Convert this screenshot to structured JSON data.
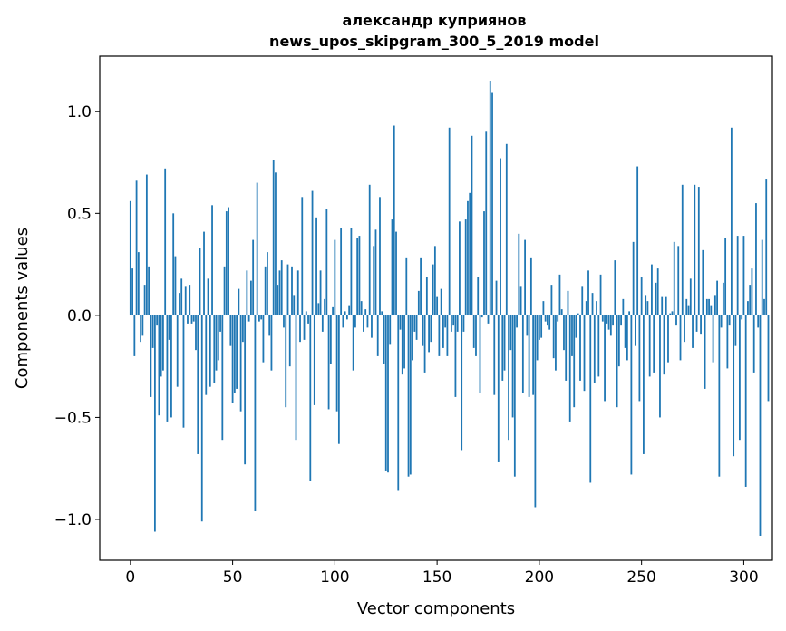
{
  "chart_data": {
    "type": "bar",
    "title_line1": "александр куприянов",
    "title_line2": "news_upos_skipgram_300_5_2019 model",
    "xlabel": "Vector components",
    "ylabel": "Components values",
    "xlim": [
      -15,
      314
    ],
    "ylim": [
      -1.2,
      1.27
    ],
    "xticks": [
      0,
      50,
      100,
      150,
      200,
      250,
      300
    ],
    "xtick_labels": [
      "0",
      "50",
      "100",
      "150",
      "200",
      "250",
      "300"
    ],
    "yticks": [
      -1.0,
      -0.5,
      0.0,
      0.5,
      1.0
    ],
    "ytick_labels": [
      "−1.0",
      "−0.5",
      "0.0",
      "0.5",
      "1.0"
    ],
    "bar_color": "#1f77b4",
    "series": [
      {
        "name": "components",
        "values": [
          0.56,
          0.23,
          -0.2,
          0.66,
          0.31,
          -0.13,
          -0.1,
          0.15,
          0.69,
          0.24,
          -0.4,
          -0.16,
          -1.06,
          -0.05,
          -0.49,
          -0.3,
          -0.27,
          0.72,
          -0.52,
          -0.12,
          -0.5,
          0.5,
          0.29,
          -0.35,
          0.11,
          0.18,
          -0.55,
          0.14,
          -0.04,
          0.15,
          -0.04,
          -0.03,
          -0.17,
          -0.68,
          0.33,
          -1.01,
          0.41,
          -0.39,
          0.18,
          -0.35,
          0.54,
          -0.33,
          -0.27,
          -0.22,
          -0.08,
          -0.61,
          0.24,
          0.51,
          0.53,
          -0.15,
          -0.43,
          -0.38,
          -0.36,
          0.13,
          -0.47,
          -0.13,
          -0.73,
          0.22,
          -0.03,
          0.17,
          0.37,
          -0.96,
          0.65,
          -0.03,
          -0.02,
          -0.23,
          0.24,
          0.31,
          -0.1,
          -0.27,
          0.76,
          0.7,
          0.15,
          0.22,
          0.27,
          -0.06,
          -0.45,
          0.25,
          -0.25,
          0.24,
          0.1,
          -0.61,
          0.22,
          -0.13,
          0.58,
          -0.12,
          0.02,
          -0.04,
          -0.81,
          0.61,
          -0.44,
          0.48,
          0.06,
          0.22,
          -0.08,
          0.08,
          0.52,
          -0.46,
          -0.24,
          0.04,
          0.37,
          -0.47,
          -0.63,
          0.43,
          -0.06,
          0.02,
          -0.02,
          0.05,
          0.43,
          -0.27,
          -0.06,
          0.38,
          0.39,
          0.07,
          -0.08,
          0.03,
          -0.06,
          0.64,
          -0.11,
          0.34,
          0.42,
          -0.2,
          0.58,
          0.02,
          -0.24,
          -0.76,
          -0.77,
          -0.14,
          0.47,
          0.93,
          0.41,
          -0.86,
          -0.07,
          -0.29,
          -0.26,
          0.28,
          -0.79,
          -0.78,
          -0.22,
          -0.08,
          -0.12,
          0.12,
          0.28,
          -0.15,
          -0.28,
          0.19,
          -0.18,
          -0.13,
          0.25,
          0.34,
          0.09,
          -0.2,
          0.13,
          -0.16,
          -0.06,
          -0.2,
          0.92,
          -0.08,
          -0.05,
          -0.4,
          -0.08,
          0.46,
          -0.66,
          -0.08,
          0.47,
          0.56,
          0.6,
          0.88,
          -0.16,
          -0.2,
          0.19,
          -0.38,
          -0.01,
          0.51,
          0.9,
          -0.04,
          1.15,
          1.09,
          -0.39,
          0.17,
          -0.72,
          0.77,
          -0.32,
          -0.27,
          0.84,
          -0.61,
          -0.17,
          -0.5,
          -0.79,
          -0.06,
          0.4,
          0.14,
          -0.38,
          0.37,
          -0.1,
          -0.4,
          0.28,
          -0.39,
          -0.94,
          -0.22,
          -0.12,
          -0.11,
          0.07,
          -0.03,
          -0.05,
          -0.07,
          0.15,
          -0.21,
          -0.27,
          -0.03,
          0.2,
          0.03,
          -0.17,
          -0.32,
          0.12,
          -0.52,
          -0.2,
          -0.45,
          -0.11,
          0.01,
          -0.32,
          0.14,
          -0.37,
          0.07,
          0.22,
          -0.82,
          0.11,
          -0.33,
          0.07,
          -0.3,
          0.2,
          -0.03,
          -0.42,
          -0.04,
          -0.07,
          -0.1,
          -0.05,
          0.27,
          -0.45,
          -0.25,
          -0.05,
          0.08,
          -0.16,
          -0.22,
          0.02,
          -0.78,
          0.36,
          -0.15,
          0.73,
          -0.42,
          0.19,
          -0.68,
          0.1,
          0.07,
          -0.3,
          0.25,
          -0.28,
          0.16,
          0.23,
          -0.5,
          0.09,
          -0.29,
          0.09,
          -0.23,
          0.01,
          0.02,
          0.36,
          -0.05,
          0.34,
          -0.22,
          0.64,
          -0.13,
          0.08,
          0.05,
          0.18,
          -0.16,
          0.64,
          -0.08,
          0.63,
          -0.09,
          0.32,
          -0.36,
          0.08,
          0.08,
          0.05,
          -0.23,
          0.1,
          0.17,
          -0.79,
          -0.06,
          0.16,
          0.38,
          -0.26,
          -0.05,
          0.92,
          -0.69,
          -0.15,
          0.39,
          -0.61,
          -0.02,
          0.39,
          -0.84,
          0.07,
          0.15,
          0.23,
          -0.28,
          0.55,
          -0.06,
          -1.08,
          0.37,
          0.08,
          0.67,
          -0.42
        ]
      }
    ]
  }
}
